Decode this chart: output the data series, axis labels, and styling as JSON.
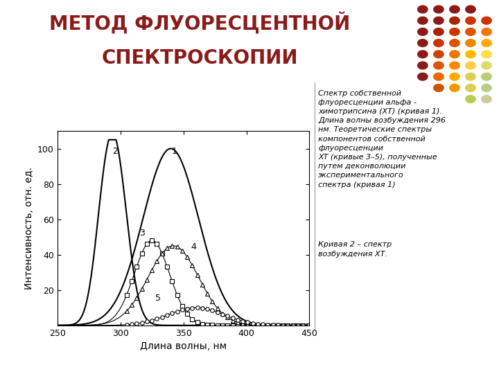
{
  "title_line1": "МЕТОД ФЛУОРЕСЦЕНТНОЙ",
  "title_line2": "СПЕКТРОСКОПИИ",
  "title_color": "#8B1A1A",
  "xlabel": "Длина волны, нм",
  "ylabel": "Интенсивность, отн. ед.",
  "xlim": [
    250,
    450
  ],
  "ylim": [
    0,
    110
  ],
  "xticks": [
    250,
    300,
    350,
    400,
    450
  ],
  "yticks": [
    20,
    40,
    60,
    80,
    100
  ],
  "annotation_text": "Спектр собственной\nфлуоресценции альфа -\nхимотрипсина (ХТ) (кривая 1).\nДлина волны возбуждения 296\nнм. Теоретические спектры\nкомпонентов собственной\nфлуоресценции\nХТ (кривые 3–5), полученные\nпутем деконволюции\nэкспериментального\nспектра (кривая 1)",
  "annotation2_text": "Кривая 2 – спектр\nвозбуждения ХТ.",
  "background_color": "#ffffff"
}
